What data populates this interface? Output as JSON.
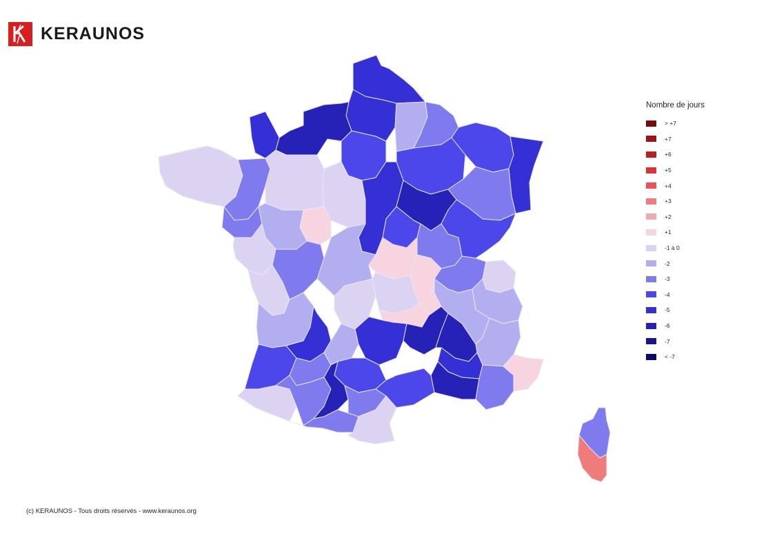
{
  "brand": {
    "name": "KERAUNOS",
    "color": "#d81e1e"
  },
  "legend": {
    "title": "Nombre de jours",
    "items": [
      {
        "label": "> +7",
        "color": "#7b0a0a"
      },
      {
        "label": "+7",
        "color": "#9c1414"
      },
      {
        "label": "+6",
        "color": "#bd1e1e"
      },
      {
        "label": "+5",
        "color": "#d93535"
      },
      {
        "label": "+4",
        "color": "#ea5353"
      },
      {
        "label": "+3",
        "color": "#ef7b7b"
      },
      {
        "label": "+2",
        "color": "#f3a9b0"
      },
      {
        "label": "+1",
        "color": "#f7d4df"
      },
      {
        "label": "-1 à 0",
        "color": "#dcd3f3"
      },
      {
        "label": "-2",
        "color": "#b2aef0"
      },
      {
        "label": "-3",
        "color": "#7f7aee"
      },
      {
        "label": "-4",
        "color": "#4b47ea"
      },
      {
        "label": "-5",
        "color": "#3530d6"
      },
      {
        "label": "-6",
        "color": "#2622b8"
      },
      {
        "label": "-7",
        "color": "#18148f"
      },
      {
        "label": "< -7",
        "color": "#0c0a6b"
      }
    ]
  },
  "footer": {
    "text": "(c) KERAUNOS - Tous droits réservés - www.keraunos.org"
  },
  "map": {
    "region": "France (départements)",
    "border_color": "#e8e8f2",
    "zone_levels": {
      "nord_pas_de_calais": "-5",
      "picardie_ouest": "-5",
      "picardie_est": "-2",
      "ardennes_marne": "-3",
      "normandie": "-6",
      "manche": "-5",
      "ile_de_france": "-4",
      "lorraine": "-4",
      "alsace": "-5",
      "champagne_sud": "-4",
      "haute_marne_vosges": "-3",
      "bretagne_ouest": "-1 à 0",
      "ille_et_vilaine": "-3",
      "loire_atlantique": "-3",
      "sarthe_mayenne": "-1 à 0",
      "loir_et_cher": "-1 à 0",
      "indre_et_loire": "+1",
      "maine_et_loire": "-2",
      "vendee": "-1 à 0",
      "yonne_loiret": "-5",
      "cote_d_or": "-6",
      "franche_comte": "-4",
      "nievre": "-4",
      "saone_et_loire": "-3",
      "allier": "+1",
      "loire_rhone": "+1",
      "ain": "-3",
      "haute_savoie": "-1 à 0",
      "savoie": "-2",
      "poitou": "-3",
      "charente_maritime": "-1 à 0",
      "limousin": "-2",
      "creuse_correze": "-1 à 0",
      "puy_de_dome": "-1 à 0",
      "haute_loire": "+1",
      "isere_drome": "-2",
      "hautes_alpes": "-2",
      "gironde": "-2",
      "landes": "-4",
      "pyrenees_atlantiques": "-1 à 0",
      "dordogne": "-5",
      "lot_et_garonne": "-3",
      "lot": "-2",
      "cantal_lozere": "-5",
      "aveyron": "-4",
      "ardeche": "-6",
      "gard": "-6",
      "vaucluse": "-5",
      "bouches_du_rhone": "-6",
      "var": "-3",
      "alpes_maritimes": "+1",
      "gers": "-3",
      "haute_garonne": "-6",
      "tarn": "-3",
      "herault": "-4",
      "pyrenees": "-3",
      "aude_pyrenees_orientales": "-1 à 0",
      "haute_corse": "-3",
      "corse_du_sud": "+3"
    }
  }
}
